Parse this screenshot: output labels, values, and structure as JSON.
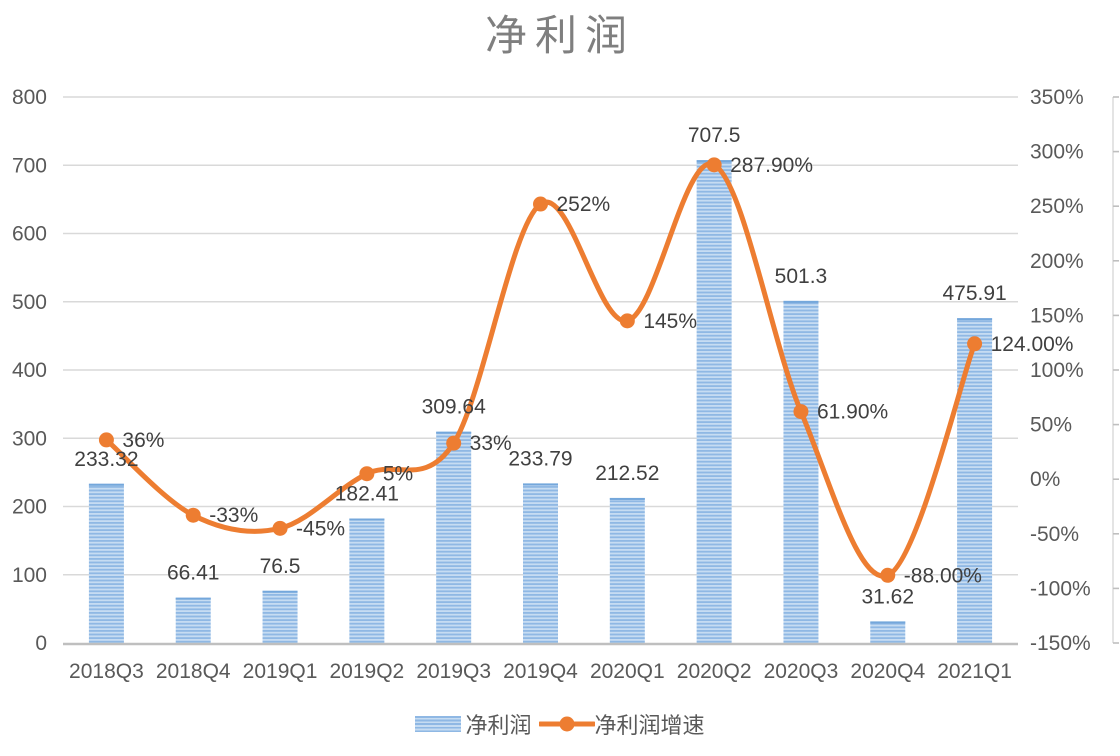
{
  "chart_data": {
    "type": "combo-bar-line",
    "title": "净利润",
    "categories": [
      "2018Q3",
      "2018Q4",
      "2019Q1",
      "2019Q2",
      "2019Q3",
      "2019Q4",
      "2020Q1",
      "2020Q2",
      "2020Q3",
      "2020Q4",
      "2021Q1"
    ],
    "series": [
      {
        "name": "净利润",
        "type": "bar",
        "axis": "left",
        "values": [
          233.32,
          66.41,
          76.5,
          182.41,
          309.64,
          233.79,
          212.52,
          707.5,
          501.3,
          31.62,
          475.91
        ],
        "labels": [
          "233.32",
          "66.41",
          "76.5",
          "182.41",
          "309.64",
          "233.79",
          "212.52",
          "707.5",
          "501.3",
          "31.62",
          "475.91"
        ]
      },
      {
        "name": "净利润增速",
        "type": "line",
        "axis": "right",
        "smooth": true,
        "values": [
          36,
          -33,
          -45,
          5,
          33,
          252,
          145,
          287.9,
          61.9,
          -88,
          124
        ],
        "labels": [
          "36%",
          "-33%",
          "-45%",
          "5%",
          "33%",
          "252%",
          "145%",
          "287.90%",
          "61.90%",
          "-88.00%",
          "124.00%"
        ]
      }
    ],
    "left_axis": {
      "min": 0,
      "max": 800,
      "step": 100,
      "labels": [
        "0",
        "100",
        "200",
        "300",
        "400",
        "500",
        "600",
        "700",
        "800"
      ]
    },
    "right_axis": {
      "min": -150,
      "max": 350,
      "step": 50,
      "labels": [
        "-150%",
        "-100%",
        "-50%",
        "0%",
        "50%",
        "100%",
        "150%",
        "200%",
        "250%",
        "300%",
        "350%"
      ]
    },
    "legend": {
      "position": "bottom",
      "items": [
        "净利润",
        "净利润增速"
      ]
    },
    "grid": true,
    "colors": {
      "bar_stripe_dark": "#8FB8E4",
      "bar_stripe_light": "#C6DCF2",
      "bar_cap": "#74A7DB",
      "line": "#ED7D31",
      "grid": "#D9D9D9",
      "axis_line": "#BFBFBF",
      "tick_text": "#595959",
      "data_label": "#404040",
      "title_text": "#7F7F7F"
    }
  }
}
